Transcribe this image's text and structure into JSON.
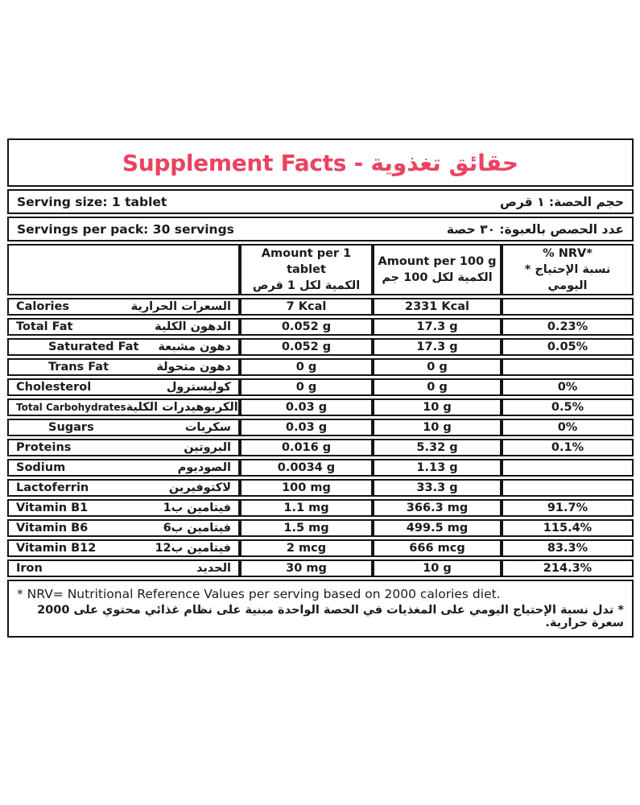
{
  "colors": {
    "title": "#EA4360",
    "text": "#1b1b1d",
    "border": "#151517",
    "background": "#ffffff"
  },
  "header": {
    "title": "Supplement Facts - حقائق تغذوية"
  },
  "serving_info": {
    "serving_size_en": "Serving size: 1 tablet",
    "serving_size_ar": "حجم الحصة: ١ قرص",
    "servings_per_pack_en": "Servings per pack: 30 servings",
    "servings_per_pack_ar": "عدد الحصص بالعبوة: ٣٠ حصة"
  },
  "table": {
    "columns": {
      "per_tablet_en": "Amount per 1 tablet",
      "per_tablet_ar": "الكمية لكل 1 قرص",
      "per_100g_en": "Amount per 100 g",
      "per_100g_ar": "الكمية لكل 100 جم",
      "nrv_en": "% NRV*",
      "nrv_ar": "* نسبة الإحتياج اليومي"
    },
    "rows": [
      {
        "name_en": "Calories",
        "name_ar": "السعرات الحرارية",
        "per_tablet": "7 Kcal",
        "per_100g": "2331 Kcal",
        "nrv": "",
        "indent": false,
        "small": false
      },
      {
        "name_en": "Total Fat",
        "name_ar": "الدهون الكلية",
        "per_tablet": "0.052 g",
        "per_100g": "17.3 g",
        "nrv": "0.23%",
        "indent": false,
        "small": false
      },
      {
        "name_en": "Saturated Fat",
        "name_ar": "دهون مشبعة",
        "per_tablet": "0.052 g",
        "per_100g": "17.3 g",
        "nrv": "0.05%",
        "indent": true,
        "small": false
      },
      {
        "name_en": "Trans Fat",
        "name_ar": "دهون متحولة",
        "per_tablet": "0 g",
        "per_100g": "0 g",
        "nrv": "",
        "indent": true,
        "small": false
      },
      {
        "name_en": "Cholesterol",
        "name_ar": "كوليسترول",
        "per_tablet": "0 g",
        "per_100g": "0 g",
        "nrv": "0%",
        "indent": false,
        "small": false
      },
      {
        "name_en": "Total Carbohydrates",
        "name_ar": "الكربوهيدرات الكلية",
        "per_tablet": "0.03 g",
        "per_100g": "10 g",
        "nrv": "0.5%",
        "indent": false,
        "small": true
      },
      {
        "name_en": "Sugars",
        "name_ar": "سكريات",
        "per_tablet": "0.03 g",
        "per_100g": "10 g",
        "nrv": "0%",
        "indent": true,
        "small": false
      },
      {
        "name_en": "Proteins",
        "name_ar": "البروتين",
        "per_tablet": "0.016 g",
        "per_100g": "5.32 g",
        "nrv": "0.1%",
        "indent": false,
        "small": false
      },
      {
        "name_en": "Sodium",
        "name_ar": "الصوديوم",
        "per_tablet": "0.0034 g",
        "per_100g": "1.13 g",
        "nrv": "",
        "indent": false,
        "small": false
      },
      {
        "name_en": "Lactoferrin",
        "name_ar": "لاكتوفيرين",
        "per_tablet": "100 mg",
        "per_100g": "33.3 g",
        "nrv": "",
        "indent": false,
        "small": false
      },
      {
        "name_en": "Vitamin B1",
        "name_ar": "فيتامين ب1",
        "per_tablet": "1.1 mg",
        "per_100g": "366.3 mg",
        "nrv": "91.7%",
        "indent": false,
        "small": false
      },
      {
        "name_en": "Vitamin B6",
        "name_ar": "فيتامين ب6",
        "per_tablet": "1.5 mg",
        "per_100g": "499.5 mg",
        "nrv": "115.4%",
        "indent": false,
        "small": false
      },
      {
        "name_en": "Vitamin B12",
        "name_ar": "فيتامين ب12",
        "per_tablet": "2 mcg",
        "per_100g": "666 mcg",
        "nrv": "83.3%",
        "indent": false,
        "small": false
      },
      {
        "name_en": "Iron",
        "name_ar": "الحديد",
        "per_tablet": "30 mg",
        "per_100g": "10 g",
        "nrv": "214.3%",
        "indent": false,
        "small": false
      }
    ]
  },
  "footnotes": {
    "en": "* NRV= Nutritional Reference Values per serving based on 2000 calories diet.",
    "ar": "* تدل نسبة الإحتياج اليومي على المغذيات في الحصة الواحدة مبنية على نظام غذائي محتوي على 2000 سعرة حرارية."
  }
}
